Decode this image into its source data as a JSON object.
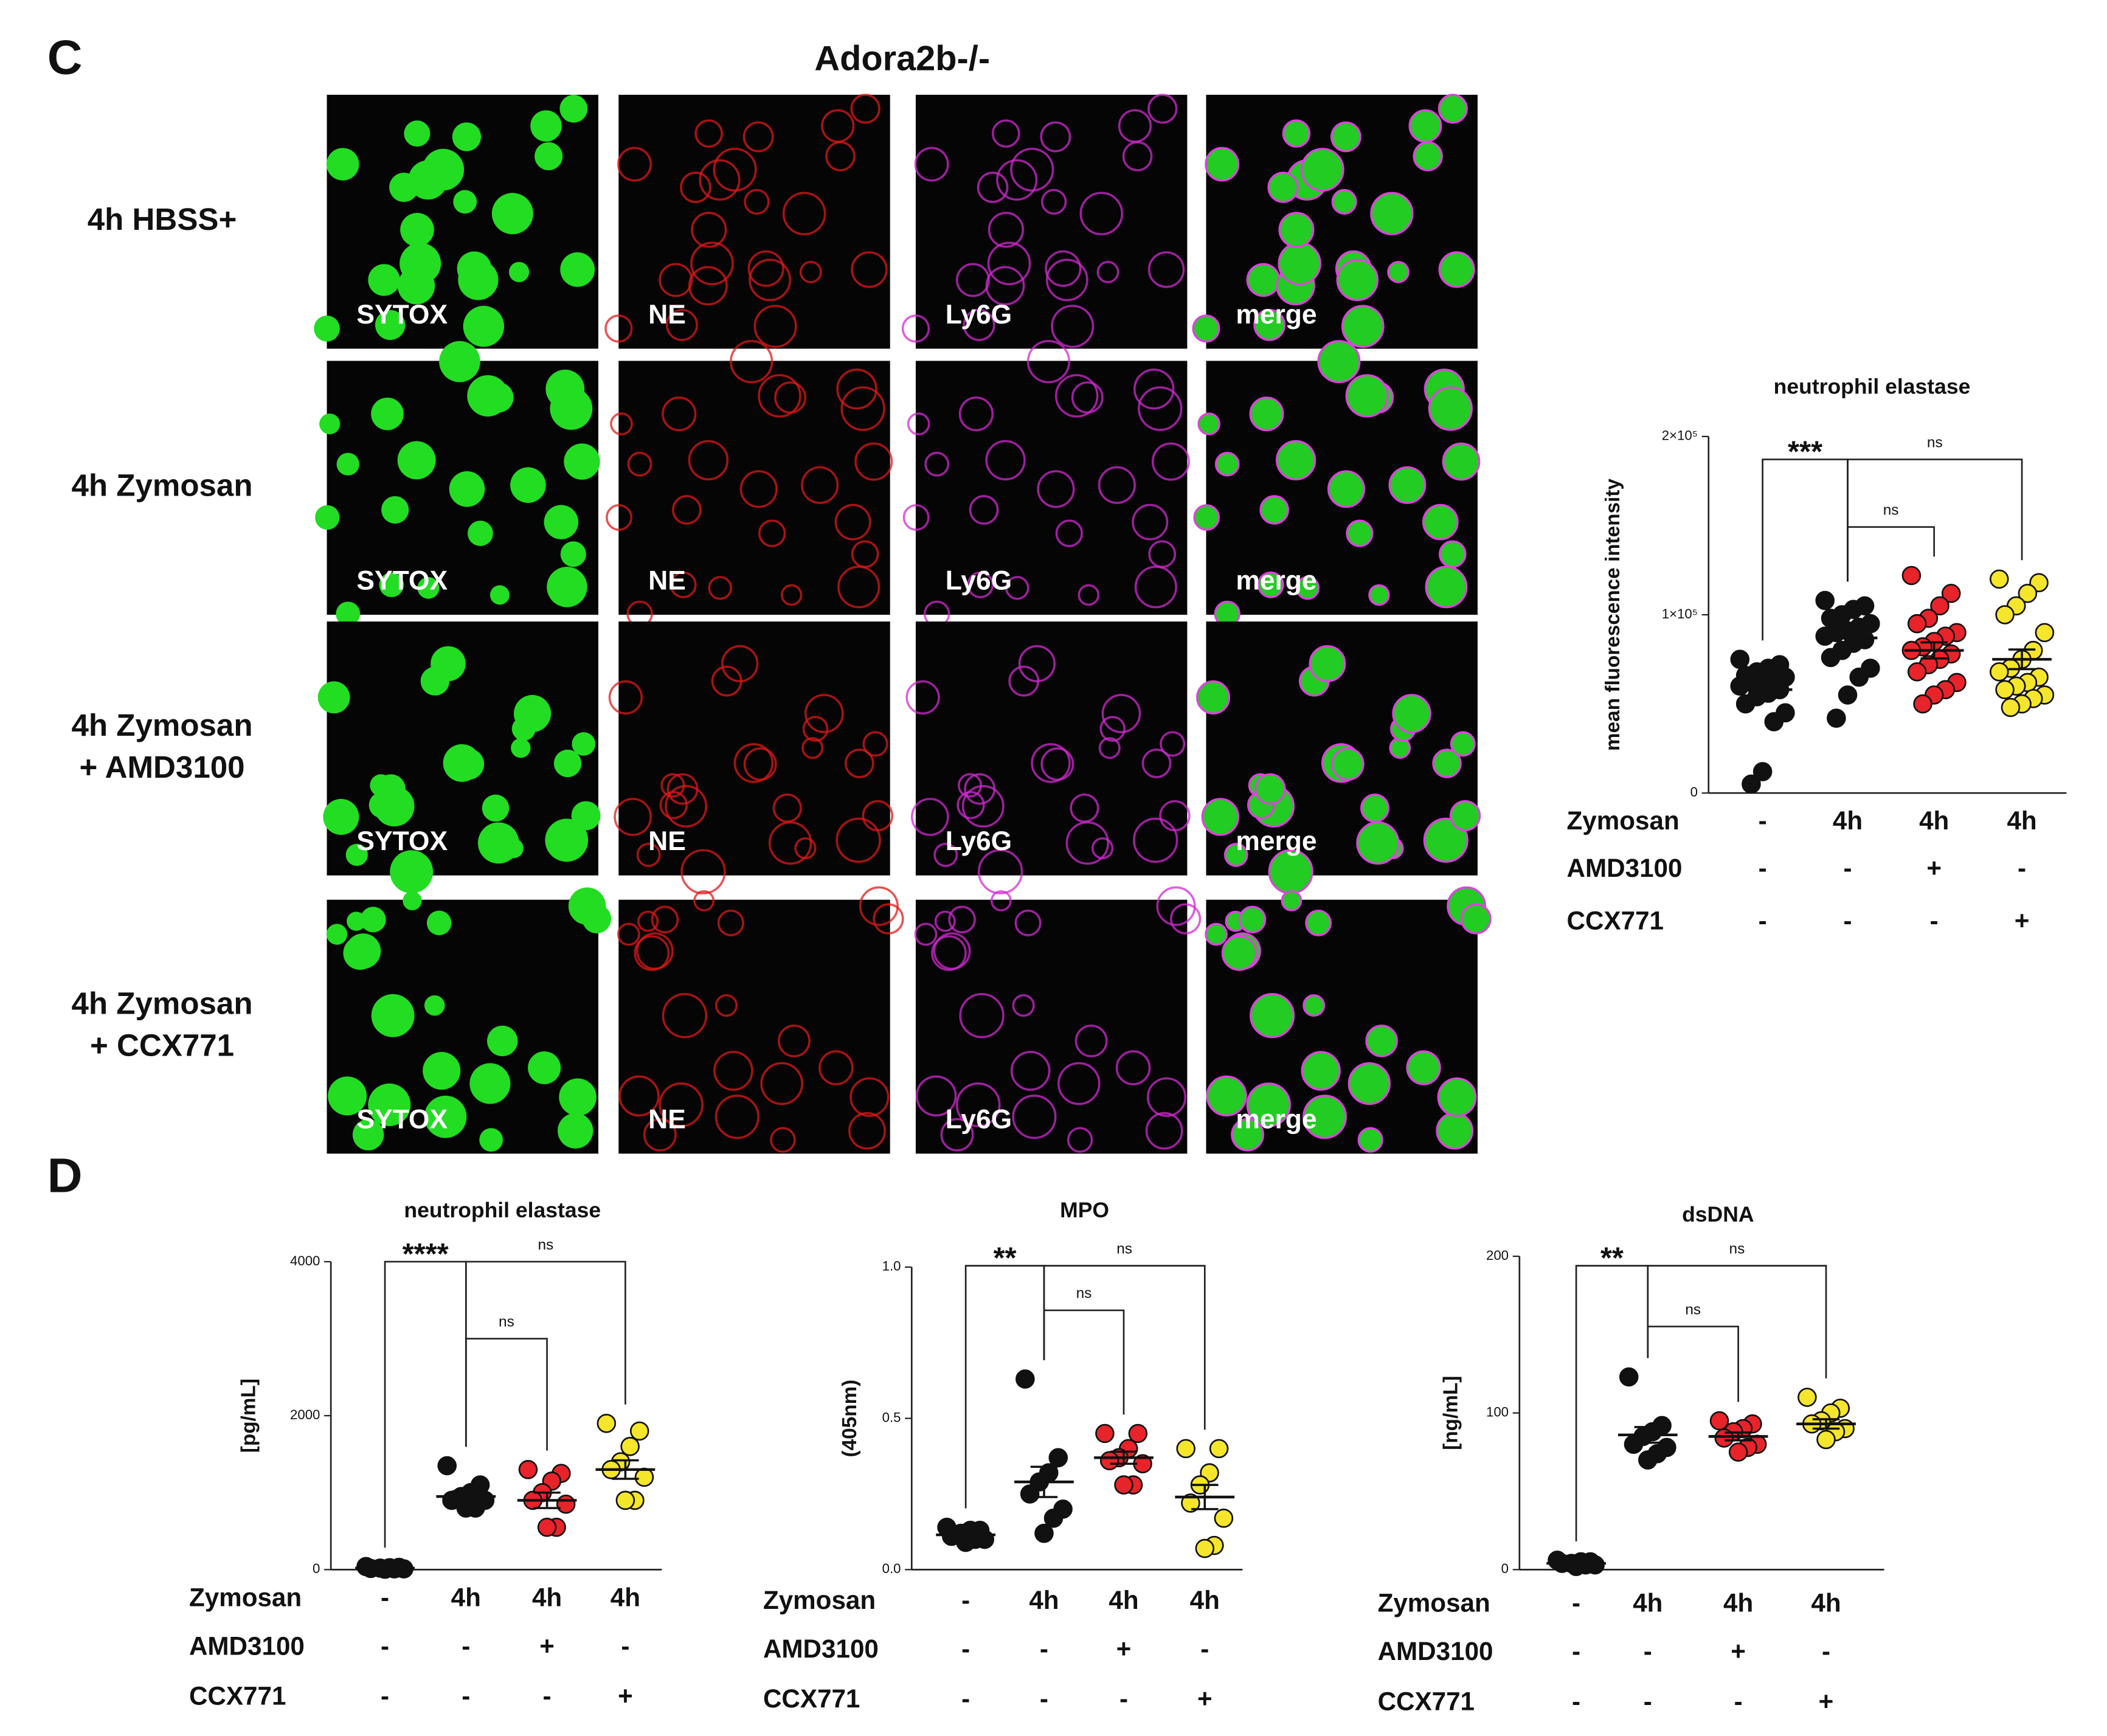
{
  "panel_c": {
    "letter": "C",
    "title": "Adora2b-/-",
    "rows": [
      [
        "4h HBSS+"
      ],
      [
        "4h Zymosan"
      ],
      [
        "4h Zymosan",
        "+ AMD3100"
      ],
      [
        "4h Zymosan",
        "+ CCX771"
      ]
    ],
    "channels": [
      "SYTOX",
      "NE",
      "Ly6G",
      "merge"
    ]
  },
  "panel_d": {
    "letter": "D"
  },
  "chart_data": [
    {
      "type": "strip",
      "title": "neutrophil elastase",
      "ylabel": "mean fluorescence intensity",
      "ylim": [
        0,
        200000
      ],
      "yticks": [
        0,
        {
          "value": 100000,
          "label": "1×10⁵"
        },
        {
          "value": 200000,
          "label": "2×10⁵"
        }
      ],
      "groups": [
        {
          "color": "#111111",
          "values": [
            75000,
            72000,
            70000,
            68000,
            66000,
            65000,
            64000,
            63000,
            62000,
            60000,
            58000,
            56000,
            54000,
            50000,
            45000,
            40000,
            12000,
            5000
          ],
          "mean": 58000,
          "sem": 4500
        },
        {
          "color": "#111111",
          "values": [
            108000,
            105000,
            103000,
            100000,
            98000,
            95000,
            93000,
            91000,
            90000,
            88000,
            86000,
            84000,
            80000,
            76000,
            70000,
            65000,
            55000,
            42000
          ],
          "mean": 87000,
          "sem": 4000
        },
        {
          "color": "#e8232a",
          "values": [
            122000,
            112000,
            105000,
            98000,
            95000,
            90000,
            88000,
            85000,
            82000,
            80000,
            78000,
            75000,
            72000,
            68000,
            62000,
            58000,
            55000,
            50000
          ],
          "mean": 80000,
          "sem": 4500
        },
        {
          "color": "#f5e52b",
          "values": [
            120000,
            118000,
            112000,
            105000,
            100000,
            90000,
            80000,
            75000,
            70000,
            68000,
            65000,
            62000,
            60000,
            58000,
            55000,
            53000,
            50000,
            48000
          ],
          "mean": 75000,
          "sem": 5500
        }
      ],
      "conditions": [
        {
          "name": "Zymosan",
          "values": [
            "-",
            "4h",
            "4h",
            "4h"
          ]
        },
        {
          "name": "AMD3100",
          "values": [
            "-",
            "-",
            "+",
            "-"
          ]
        },
        {
          "name": "CCX771",
          "values": [
            "-",
            "-",
            "-",
            "+"
          ]
        }
      ],
      "comparisons": [
        "***",
        "ns",
        "ns"
      ]
    },
    {
      "type": "strip",
      "title": "neutrophil elastase",
      "ylabel": "[pg/mL]",
      "ylim": [
        0,
        4000
      ],
      "yticks": [
        0,
        2000,
        4000
      ],
      "groups": [
        {
          "color": "#111111",
          "values": [
            40,
            30,
            25,
            20,
            15,
            10,
            10,
            5
          ],
          "mean": 20,
          "sem": 5
        },
        {
          "color": "#111111",
          "values": [
            1350,
            1100,
            1000,
            950,
            900,
            900,
            800,
            800
          ],
          "mean": 950,
          "sem": 70
        },
        {
          "color": "#e8232a",
          "values": [
            1300,
            1250,
            1150,
            1000,
            900,
            850,
            550,
            550
          ],
          "mean": 900,
          "sem": 100
        },
        {
          "color": "#f5e52b",
          "values": [
            1900,
            1800,
            1600,
            1400,
            1300,
            1200,
            900,
            900
          ],
          "mean": 1300,
          "sem": 120
        }
      ],
      "conditions": [
        {
          "name": "Zymosan",
          "values": [
            "-",
            "4h",
            "4h",
            "4h"
          ]
        },
        {
          "name": "AMD3100",
          "values": [
            "-",
            "-",
            "+",
            "-"
          ]
        },
        {
          "name": "CCX771",
          "values": [
            "-",
            "-",
            "-",
            "+"
          ]
        }
      ],
      "comparisons": [
        "****",
        "ns",
        "ns"
      ]
    },
    {
      "type": "strip",
      "title": "MPO",
      "ylabel": "(405nm)",
      "ylim": [
        0,
        1
      ],
      "yticks": [
        {
          "value": 0,
          "label": "0.0"
        },
        0.5,
        {
          "value": 1,
          "label": "1.0"
        }
      ],
      "groups": [
        {
          "color": "#111111",
          "values": [
            0.14,
            0.13,
            0.13,
            0.12,
            0.11,
            0.1,
            0.1,
            0.09
          ],
          "mean": 0.115,
          "sem": 0.007
        },
        {
          "color": "#111111",
          "values": [
            0.63,
            0.37,
            0.32,
            0.29,
            0.25,
            0.2,
            0.17,
            0.12
          ],
          "mean": 0.29,
          "sem": 0.05
        },
        {
          "color": "#e8232a",
          "values": [
            0.45,
            0.45,
            0.4,
            0.37,
            0.36,
            0.35,
            0.28,
            0.28
          ],
          "mean": 0.37,
          "sem": 0.02
        },
        {
          "color": "#f5e52b",
          "values": [
            0.4,
            0.4,
            0.32,
            0.28,
            0.22,
            0.17,
            0.08,
            0.07
          ],
          "mean": 0.24,
          "sem": 0.04
        }
      ],
      "conditions": [
        {
          "name": "Zymosan",
          "values": [
            "-",
            "4h",
            "4h",
            "4h"
          ]
        },
        {
          "name": "AMD3100",
          "values": [
            "-",
            "-",
            "+",
            "-"
          ]
        },
        {
          "name": "CCX771",
          "values": [
            "-",
            "-",
            "-",
            "+"
          ]
        }
      ],
      "comparisons": [
        "**",
        "ns",
        "ns"
      ]
    },
    {
      "type": "strip",
      "title": "dsDNA",
      "ylabel": "[ng/mL]",
      "ylim": [
        0,
        200
      ],
      "yticks": [
        0,
        100,
        200
      ],
      "groups": [
        {
          "color": "#111111",
          "values": [
            6,
            5,
            5,
            4,
            4,
            3,
            3,
            2
          ],
          "mean": 4,
          "sem": 0.5
        },
        {
          "color": "#111111",
          "values": [
            123,
            92,
            88,
            85,
            80,
            78,
            74,
            70
          ],
          "mean": 86,
          "sem": 5
        },
        {
          "color": "#e8232a",
          "values": [
            95,
            93,
            90,
            88,
            84,
            80,
            78,
            75
          ],
          "mean": 85,
          "sem": 2.5
        },
        {
          "color": "#f5e52b",
          "values": [
            110,
            103,
            100,
            95,
            93,
            90,
            88,
            83
          ],
          "mean": 93,
          "sem": 3
        }
      ],
      "conditions": [
        {
          "name": "Zymosan",
          "values": [
            "-",
            "4h",
            "4h",
            "4h"
          ]
        },
        {
          "name": "AMD3100",
          "values": [
            "-",
            "-",
            "+",
            "-"
          ]
        },
        {
          "name": "CCX771",
          "values": [
            "-",
            "-",
            "-",
            "+"
          ]
        }
      ],
      "comparisons": [
        "**",
        "ns",
        "ns"
      ]
    }
  ]
}
